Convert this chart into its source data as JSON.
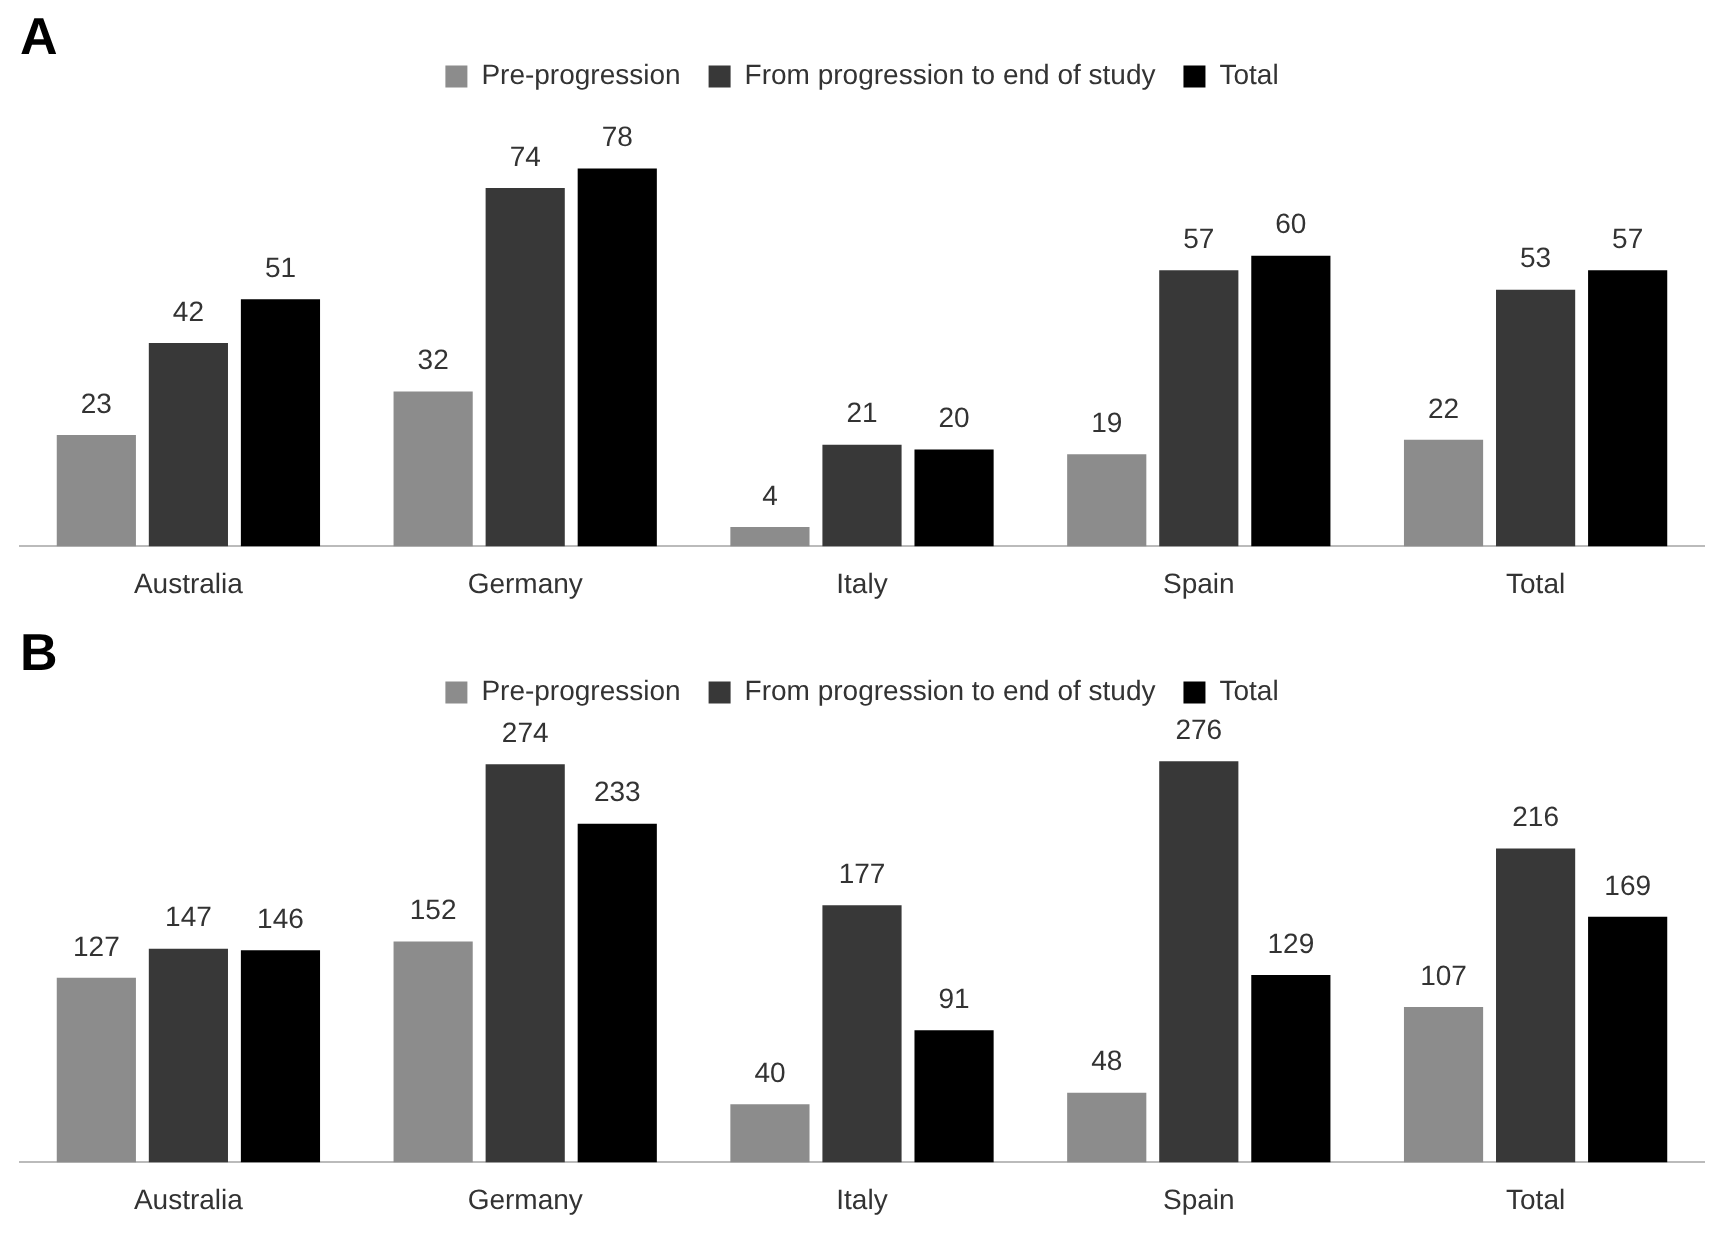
{
  "chart_data": [
    {
      "type": "bar",
      "title": "A",
      "categories": [
        "Australia",
        "Germany",
        "Italy",
        "Spain",
        "Total"
      ],
      "legend": "top",
      "data_labels": true,
      "series": [
        {
          "name": "Pre-progression",
          "color": "#8c8c8c",
          "values": [
            23,
            32,
            4,
            19,
            22
          ]
        },
        {
          "name": "From progression to end of study",
          "color": "#383838",
          "values": [
            42,
            74,
            21,
            57,
            53
          ]
        },
        {
          "name": "Total",
          "color": "#000000",
          "values": [
            51,
            78,
            20,
            60,
            57
          ]
        }
      ]
    },
    {
      "type": "bar",
      "title": "B",
      "categories": [
        "Australia",
        "Germany",
        "Italy",
        "Spain",
        "Total"
      ],
      "legend": "top",
      "data_labels": true,
      "series": [
        {
          "name": "Pre-progression",
          "color": "#8c8c8c",
          "values": [
            127,
            152,
            40,
            48,
            107
          ]
        },
        {
          "name": "From progression to end of study",
          "color": "#383838",
          "values": [
            147,
            274,
            177,
            276,
            216
          ]
        },
        {
          "name": "Total",
          "color": "#000000",
          "values": [
            146,
            233,
            91,
            129,
            169
          ]
        }
      ]
    }
  ]
}
